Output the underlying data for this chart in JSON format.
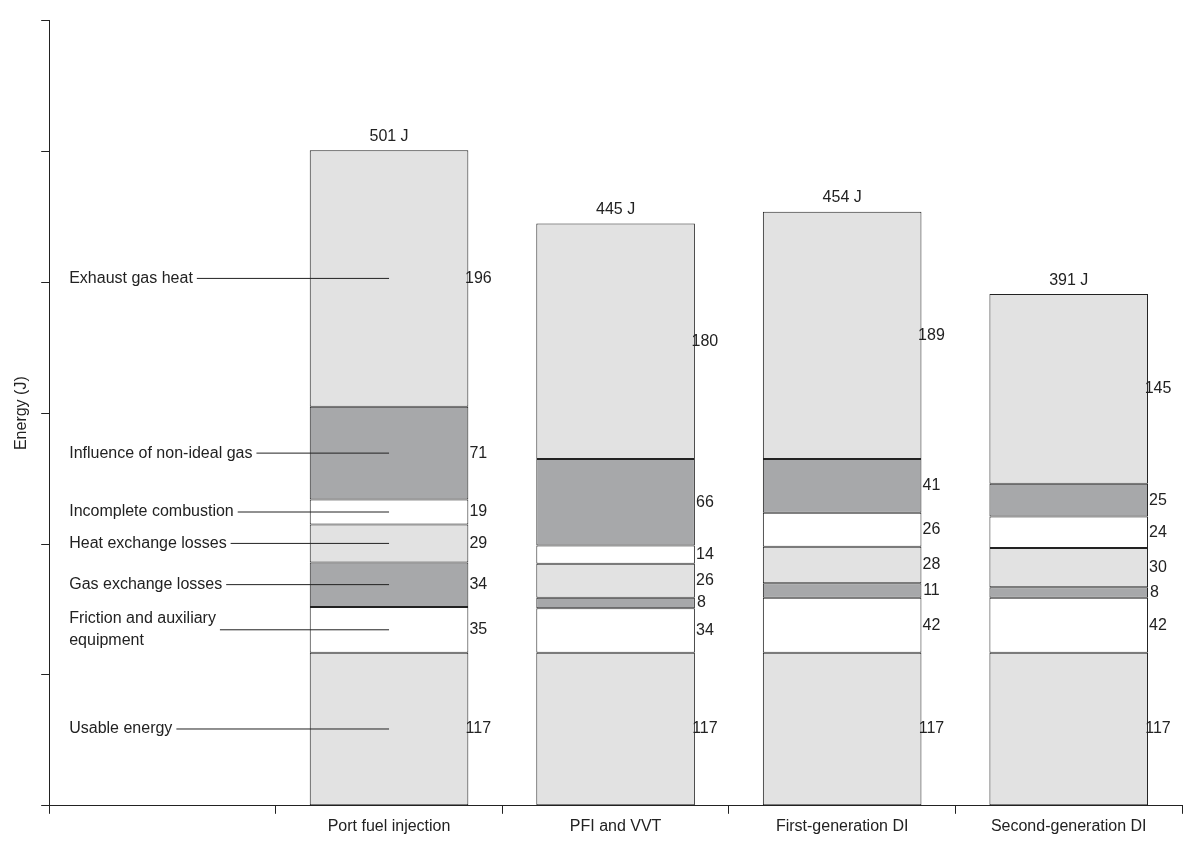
{
  "chart_data": {
    "type": "bar",
    "stacked": true,
    "ylabel": "Energy (J)",
    "categories": [
      null,
      "Port fuel injection",
      "PFI and VVT",
      "First-generation DI",
      "Second-generation DI"
    ],
    "series": [
      {
        "name": "Usable energy",
        "color": "#e2e2e2",
        "values": [
          null,
          117,
          117,
          117,
          117
        ]
      },
      {
        "name": "Friction and auxiliary equipment",
        "color": "#ffffff",
        "values": [
          null,
          35,
          34,
          42,
          42
        ]
      },
      {
        "name": "Gas exchange losses",
        "color": "#a7a8aa",
        "values": [
          null,
          34,
          8,
          11,
          8
        ]
      },
      {
        "name": "Heat exchange losses",
        "color": "#e2e2e2",
        "values": [
          null,
          29,
          26,
          28,
          30
        ]
      },
      {
        "name": "Incomplete combustion",
        "color": "#ffffff",
        "values": [
          null,
          19,
          14,
          26,
          24
        ]
      },
      {
        "name": "Influence of non-ideal gas",
        "color": "#a7a8aa",
        "values": [
          null,
          71,
          66,
          41,
          25
        ]
      },
      {
        "name": "Exhaust gas heat",
        "color": "#e2e2e2",
        "values": [
          null,
          196,
          180,
          189,
          145
        ]
      }
    ],
    "totals": [
      null,
      "501 J",
      "445 J",
      "454 J",
      "391 J"
    ],
    "data_labels": true,
    "ylim": [
      0,
      600
    ],
    "yticks": [
      {
        "value": 0,
        "label": null
      },
      {
        "value": 100,
        "label": null
      },
      {
        "value": 200,
        "label": null
      },
      {
        "value": 300,
        "label": null
      },
      {
        "value": 400,
        "label": null
      },
      {
        "value": 500,
        "label": null
      },
      {
        "value": 600,
        "label": null
      }
    ],
    "tick_labels": "x",
    "legend": false,
    "grid": false
  }
}
